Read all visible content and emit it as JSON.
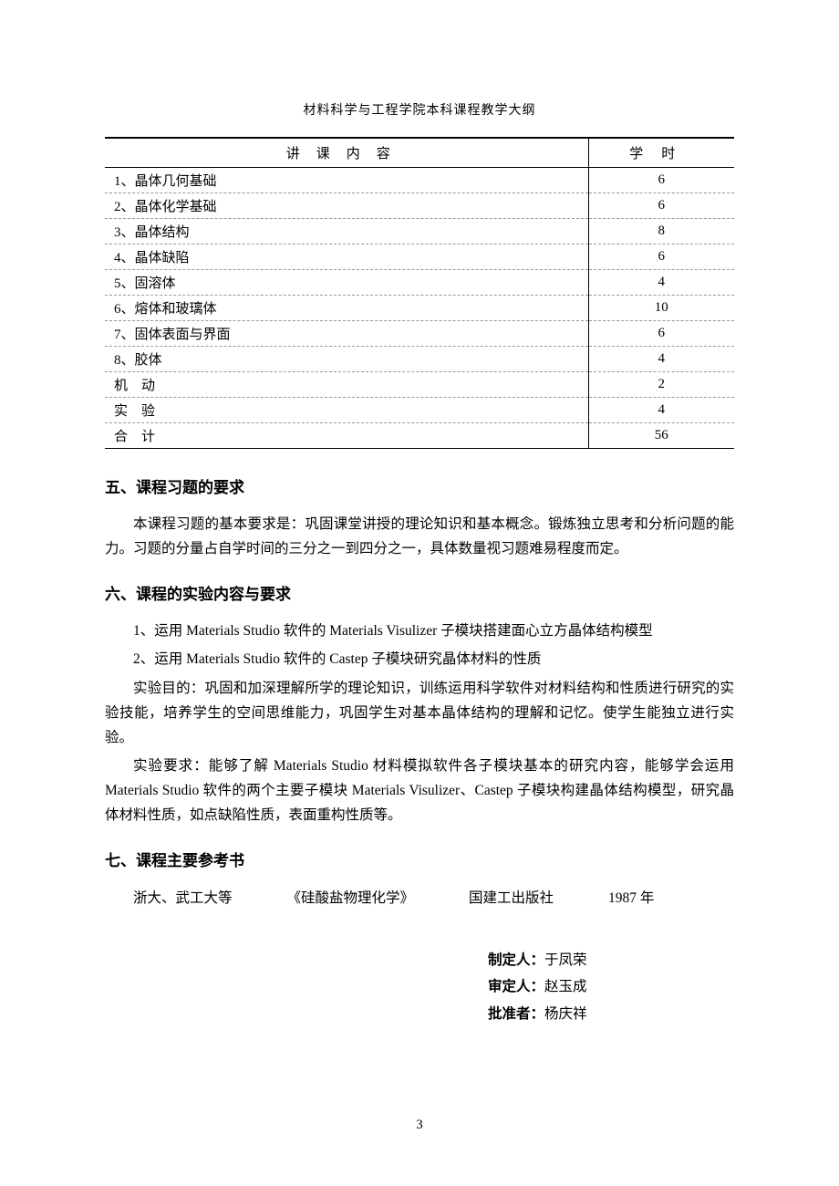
{
  "header": "材料科学与工程学院本科课程教学大纲",
  "table": {
    "col1_header": "讲课内容",
    "col2_header": "学时",
    "rows": [
      {
        "topic": "1、晶体几何基础",
        "hours": "6"
      },
      {
        "topic": "2、晶体化学基础",
        "hours": "6"
      },
      {
        "topic": "3、晶体结构",
        "hours": "8"
      },
      {
        "topic": "4、晶体缺陷",
        "hours": "6"
      },
      {
        "topic": "5、固溶体",
        "hours": "4"
      },
      {
        "topic": "6、熔体和玻璃体",
        "hours": "10"
      },
      {
        "topic": "7、固体表面与界面",
        "hours": "6"
      },
      {
        "topic": "8、胶体",
        "hours": "4"
      },
      {
        "topic": "机　动",
        "hours": "2"
      },
      {
        "topic": "实　验",
        "hours": "4"
      },
      {
        "topic": "合　计",
        "hours": "56"
      }
    ]
  },
  "section5": {
    "heading": "五、课程习题的要求",
    "p1": "本课程习题的基本要求是：巩固课堂讲授的理论知识和基本概念。锻炼独立思考和分析问题的能力。习题的分量占自学时间的三分之一到四分之一，具体数量视习题难易程度而定。"
  },
  "section6": {
    "heading": "六、课程的实验内容与要求",
    "p1": "1、运用 Materials Studio 软件的 Materials Visulizer 子模块搭建面心立方晶体结构模型",
    "p2": "2、运用 Materials Studio 软件的 Castep 子模块研究晶体材料的性质",
    "p3": "实验目的：巩固和加深理解所学的理论知识，训练运用科学软件对材料结构和性质进行研究的实验技能，培养学生的空间思维能力，巩固学生对基本晶体结构的理解和记忆。使学生能独立进行实验。",
    "p4": "实验要求：能够了解 Materials Studio 材料模拟软件各子模块基本的研究内容，能够学会运用 Materials Studio 软件的两个主要子模块 Materials Visulizer、Castep 子模块构建晶体结构模型，研究晶体材料性质，如点缺陷性质，表面重构性质等。"
  },
  "section7": {
    "heading": "七、课程主要参考书",
    "ref": {
      "author": "浙大、武工大等",
      "title": "《硅酸盐物理化学》",
      "publisher": "国建工出版社",
      "year": "1987 年"
    }
  },
  "signatures": {
    "s1_label": "制定人：",
    "s1_name": "于凤荣",
    "s2_label": "审定人：",
    "s2_name": "赵玉成",
    "s3_label": "批准者：",
    "s3_name": "杨庆祥"
  },
  "page_number": "3"
}
